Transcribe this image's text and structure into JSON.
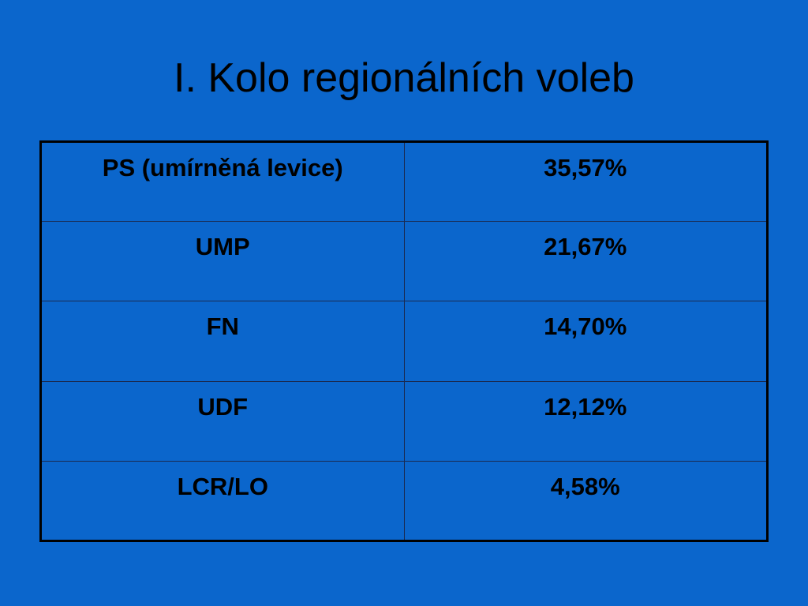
{
  "header": {
    "title": "I. Kolo regionálních voleb"
  },
  "table": {
    "rows": [
      [
        "PS (umírněná levice)",
        "35,57%"
      ],
      [
        "UMP",
        "21,67%"
      ],
      [
        "FN",
        "14,70%"
      ],
      [
        "UDF",
        "12,12%"
      ],
      [
        "LCR/LO",
        "4,58%"
      ]
    ]
  }
}
